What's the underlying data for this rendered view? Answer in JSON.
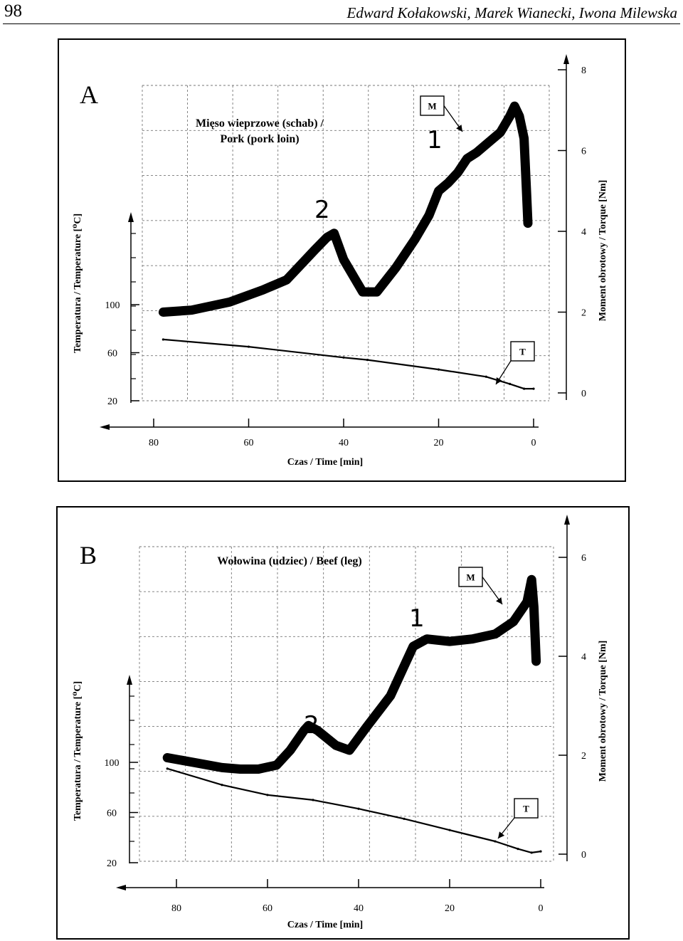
{
  "page": {
    "number": "98",
    "authors": "Edward Kołakowski, Marek Wianecki, Iwona Milewska"
  },
  "chart_data": [
    {
      "panel": "A",
      "type": "line",
      "title_line1": "Mięso wieprzowe (schab) /",
      "title_line2": "Pork (pork loin)",
      "xlabel": "Czas / Time [min]",
      "ylabel_left": "Temperatura / Temperature [⁰C]",
      "ylabel_right": "Moment obrotowy / Torque [Nm]",
      "x_reversed": true,
      "xlim": [
        0,
        85
      ],
      "x_ticks": [
        "80",
        "60",
        "40",
        "20",
        "0"
      ],
      "x_tick_values": [
        80,
        60,
        40,
        20,
        0
      ],
      "y_left_ticks": [
        "100",
        "60",
        "20"
      ],
      "y_left_tick_values": [
        100,
        60,
        20
      ],
      "y_left_lim": [
        20,
        100
      ],
      "y_right_ticks": [
        "8",
        "6",
        "4",
        "2",
        "0"
      ],
      "y_right_tick_values": [
        8,
        6,
        4,
        2,
        0
      ],
      "y_right_lim": [
        0,
        8
      ],
      "series": [
        {
          "name": "M",
          "axis": "right",
          "x": [
            78,
            72,
            64,
            57,
            52,
            46,
            43.5,
            42,
            40,
            36,
            33,
            29,
            25,
            22,
            20,
            18,
            16,
            14,
            12,
            9,
            7,
            5,
            4,
            3,
            2,
            1.5,
            1.2
          ],
          "y": [
            2.0,
            2.05,
            2.25,
            2.55,
            2.8,
            3.55,
            3.85,
            3.95,
            3.3,
            2.5,
            2.5,
            3.1,
            3.8,
            4.4,
            5.0,
            5.2,
            5.45,
            5.8,
            5.95,
            6.25,
            6.45,
            6.85,
            7.1,
            6.85,
            6.3,
            5.0,
            4.2
          ]
        },
        {
          "name": "T",
          "axis": "left",
          "x": [
            78,
            60,
            40,
            35,
            20,
            10,
            5,
            2,
            0
          ],
          "y": [
            71,
            65,
            56,
            54,
            46,
            40,
            34,
            30,
            30
          ]
        }
      ],
      "annotations": [
        "1",
        "2"
      ],
      "callouts": [
        "M",
        "T"
      ]
    },
    {
      "panel": "B",
      "type": "line",
      "title": "Wołowina (udziec) / Beef (leg)",
      "xlabel": "Czas / Time [min]",
      "ylabel_left": "Temperatura / Temperature [⁰C]",
      "ylabel_right": "Moment obrotowy / Torque [Nm]",
      "x_reversed": true,
      "xlim": [
        0,
        85
      ],
      "x_ticks": [
        "80",
        "60",
        "40",
        "20",
        "0"
      ],
      "x_tick_values": [
        80,
        60,
        40,
        20,
        0
      ],
      "y_left_ticks": [
        "100",
        "60",
        "20"
      ],
      "y_left_tick_values": [
        100,
        60,
        20
      ],
      "y_left_lim": [
        20,
        100
      ],
      "y_right_ticks": [
        "6",
        "4",
        "2",
        "0"
      ],
      "y_right_tick_values": [
        6,
        4,
        2,
        0
      ],
      "y_right_lim": [
        0,
        6
      ],
      "series": [
        {
          "name": "M",
          "axis": "right",
          "x": [
            82,
            76,
            70,
            66,
            62,
            58,
            55,
            52,
            51,
            49,
            45,
            42,
            38,
            33,
            30,
            28,
            25,
            20,
            15,
            10,
            6,
            3,
            2,
            1.5,
            1
          ],
          "y": [
            1.95,
            1.85,
            1.75,
            1.72,
            1.72,
            1.8,
            2.1,
            2.5,
            2.6,
            2.5,
            2.2,
            2.1,
            2.6,
            3.2,
            3.8,
            4.2,
            4.35,
            4.3,
            4.35,
            4.45,
            4.7,
            5.1,
            5.55,
            5.0,
            3.9
          ]
        },
        {
          "name": "T",
          "axis": "left",
          "x": [
            82,
            70,
            60,
            50,
            40,
            30,
            20,
            10,
            5,
            2,
            0
          ],
          "y": [
            95,
            82,
            74,
            70,
            63,
            55,
            46,
            37,
            31,
            28,
            29
          ]
        }
      ],
      "annotations": [
        "1",
        "2"
      ],
      "callouts": [
        "M",
        "T"
      ]
    }
  ]
}
